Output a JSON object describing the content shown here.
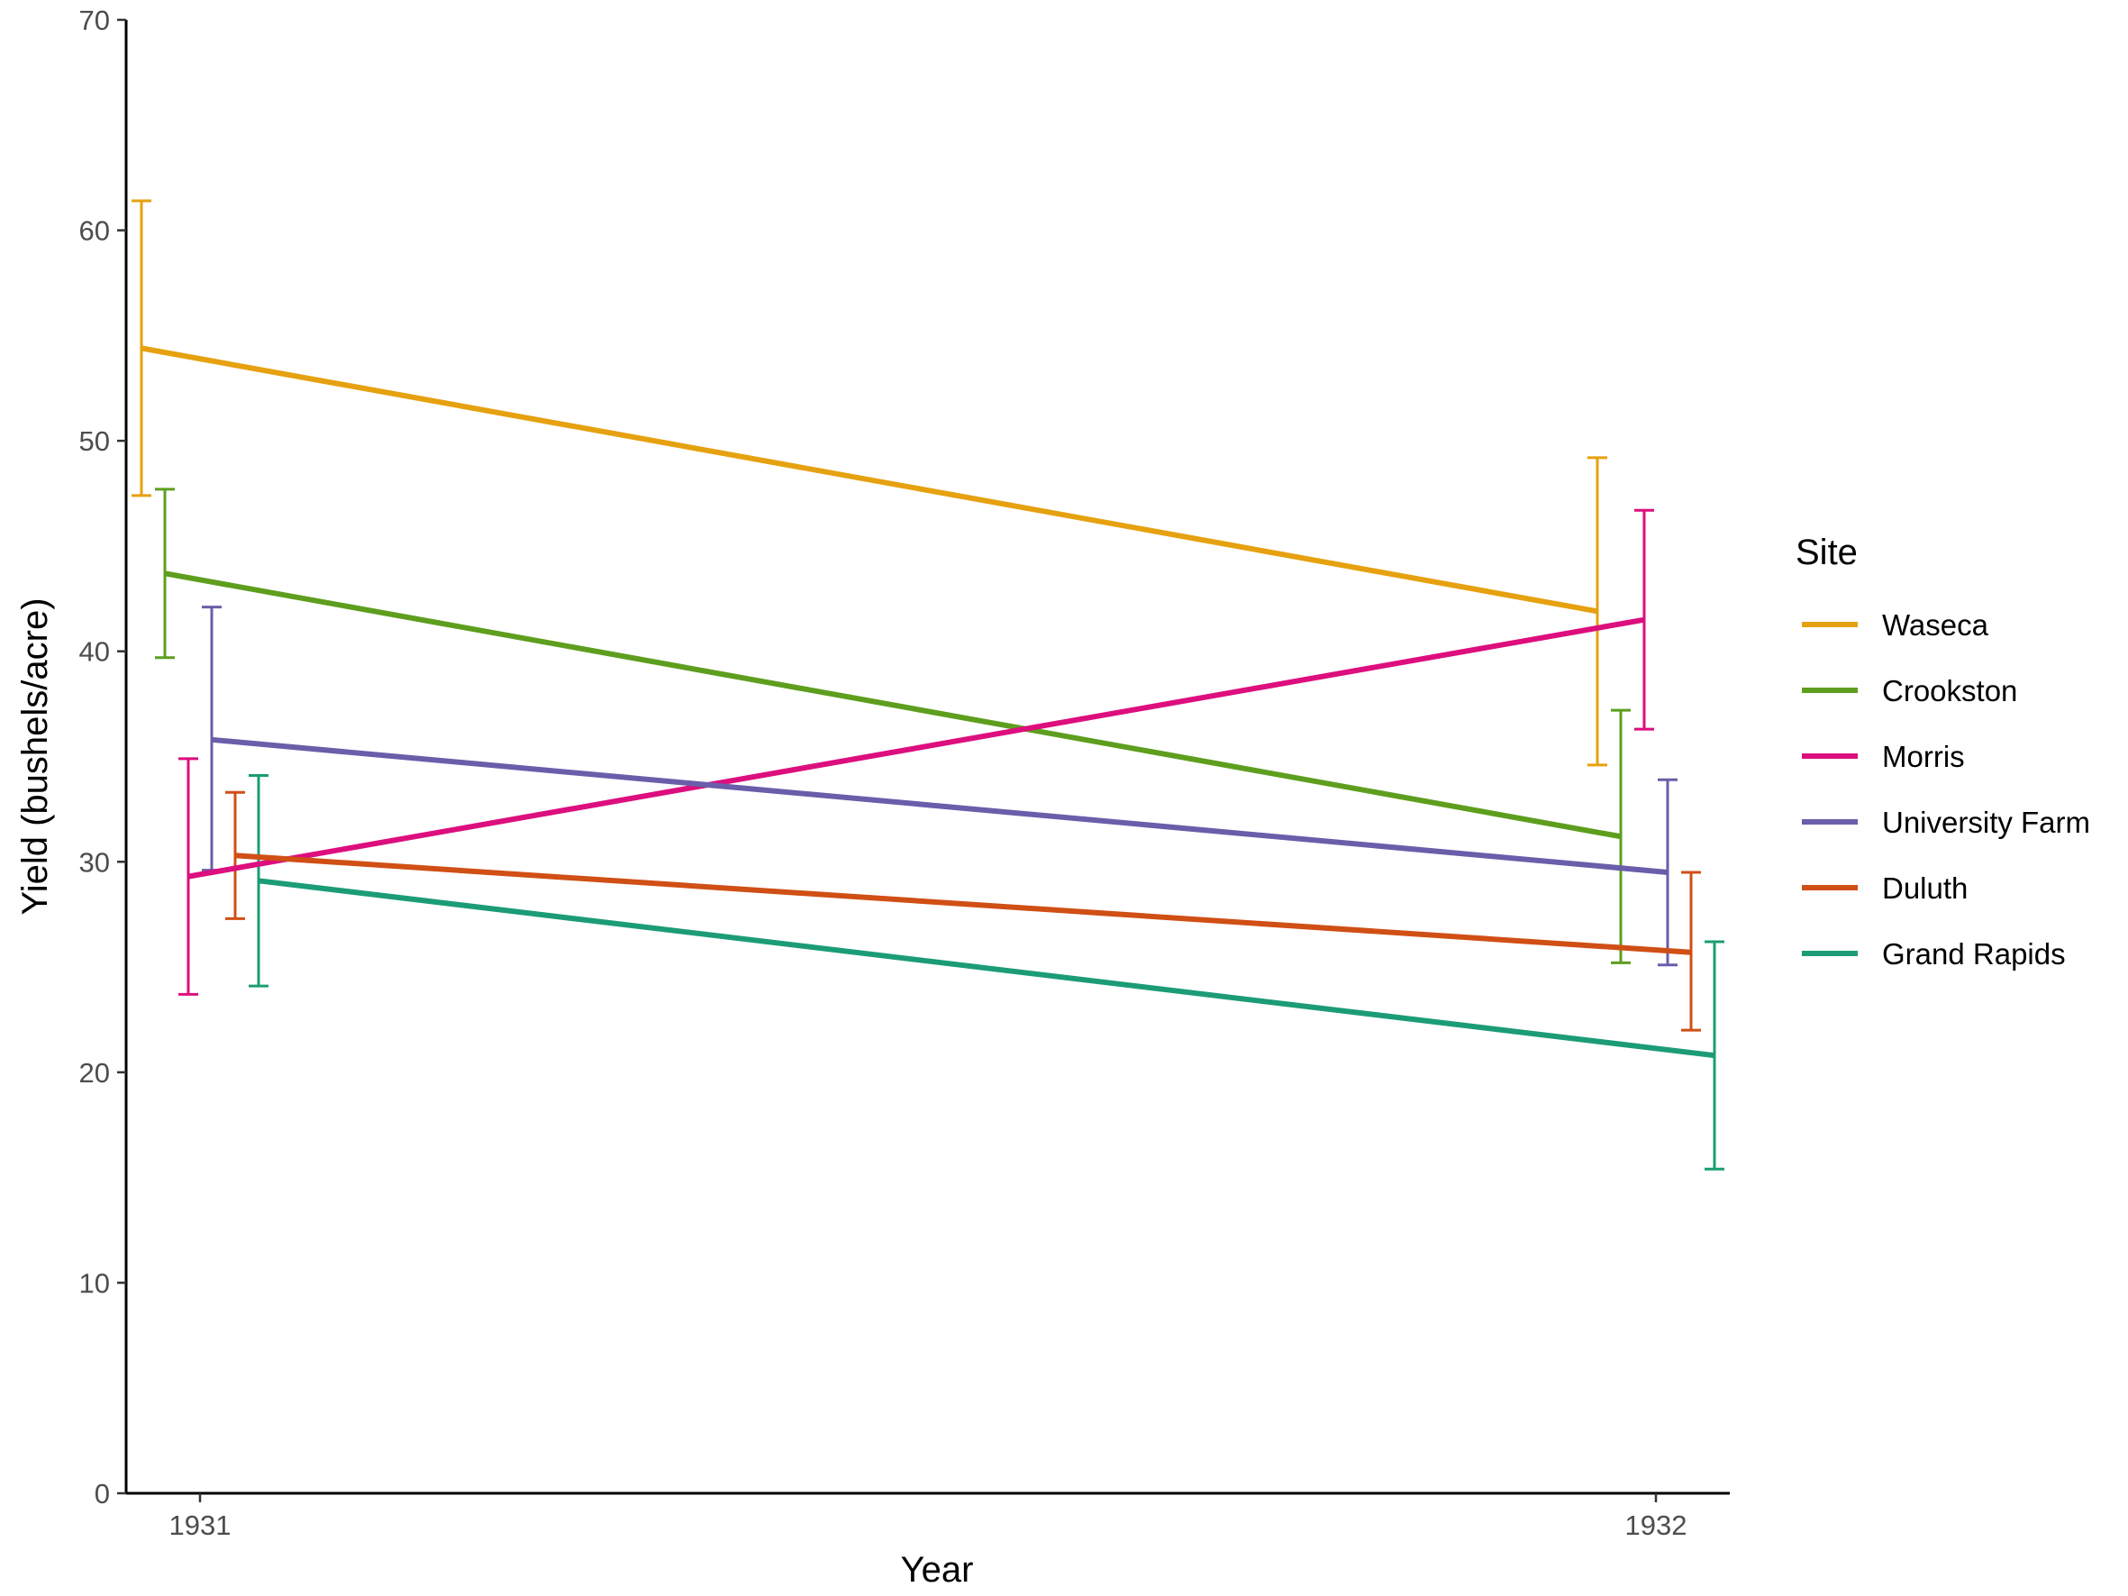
{
  "chart_data": {
    "type": "line",
    "xlabel": "Year",
    "ylabel": "Yield (bushels/acre)",
    "categories": [
      "1931",
      "1932"
    ],
    "ylim": [
      0,
      70
    ],
    "yticks": [
      0,
      10,
      20,
      30,
      40,
      50,
      60,
      70
    ],
    "grid": false,
    "legend": {
      "title": "Site",
      "position": "right"
    },
    "error_bars": true,
    "series": [
      {
        "name": "Waseca",
        "color": "#E6A110",
        "values": [
          54.4,
          41.9
        ],
        "lower": [
          47.4,
          34.6
        ],
        "upper": [
          61.4,
          49.2
        ]
      },
      {
        "name": "Crookston",
        "color": "#5E9E1E",
        "values": [
          43.7,
          31.2
        ],
        "lower": [
          39.7,
          25.2
        ],
        "upper": [
          47.7,
          37.2
        ]
      },
      {
        "name": "Morris",
        "color": "#DD0E7E",
        "values": [
          29.3,
          41.5
        ],
        "lower": [
          23.7,
          36.3
        ],
        "upper": [
          34.9,
          46.7
        ]
      },
      {
        "name": "University Farm",
        "color": "#6A5EAA",
        "values": [
          35.8,
          29.5
        ],
        "lower": [
          29.6,
          25.1
        ],
        "upper": [
          42.1,
          33.9
        ]
      },
      {
        "name": "Duluth",
        "color": "#D04F15",
        "values": [
          30.3,
          25.7
        ],
        "lower": [
          27.3,
          22.0
        ],
        "upper": [
          33.3,
          29.5
        ]
      },
      {
        "name": "Grand Rapids",
        "color": "#1C9C76",
        "values": [
          29.1,
          20.8
        ],
        "lower": [
          24.1,
          15.4
        ],
        "upper": [
          34.1,
          26.2
        ]
      }
    ]
  }
}
